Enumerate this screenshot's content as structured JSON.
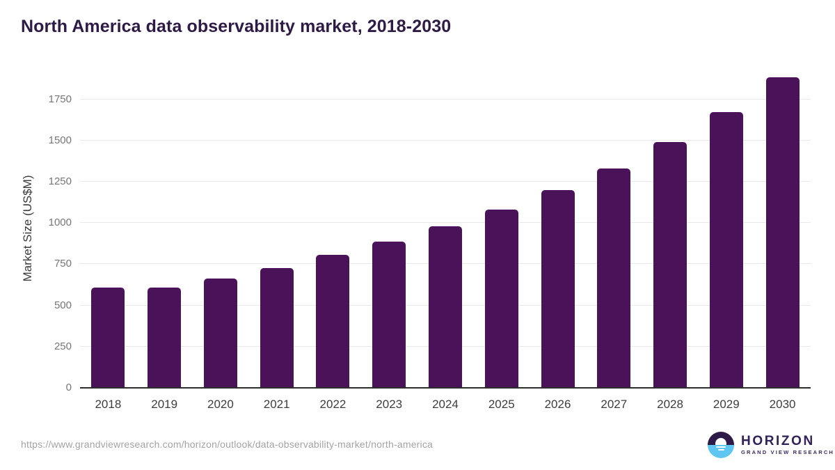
{
  "page": {
    "title": "North America data observability market, 2018-2030"
  },
  "chart_data": {
    "type": "bar",
    "title": "North America data observability market, 2018-2030",
    "categories": [
      "2018",
      "2019",
      "2020",
      "2021",
      "2022",
      "2023",
      "2024",
      "2025",
      "2026",
      "2027",
      "2028",
      "2029",
      "2030"
    ],
    "values": [
      610,
      606,
      663,
      728,
      805,
      886,
      980,
      1081,
      1199,
      1332,
      1489,
      1672,
      1883
    ],
    "xlabel": "",
    "ylabel": "Market Size (US$M)",
    "ylim": [
      0,
      1938
    ],
    "yticks": [
      0,
      250,
      500,
      750,
      1000,
      1250,
      1500,
      1750
    ],
    "grid": "horizontal",
    "legend_position": "none",
    "bar_color": "#4a1259"
  },
  "footer": {
    "source_url": "https://www.grandviewresearch.com/horizon/outlook/data-observability-market/north-america",
    "logo_brand": "HORIZON",
    "logo_subbrand": "GRAND VIEW RESEARCH"
  },
  "colors": {
    "title_text": "#2e1a47",
    "bar": "#4a1259",
    "axis_line": "#2d2d2d",
    "gridline": "#e9e9e9",
    "y_tick_label": "#757575",
    "x_tick_label": "#3d3d3d",
    "url_text": "#a3a3a3",
    "logo_dark_purple": "#2e1a47",
    "logo_light_blue": "#5ec6f0"
  }
}
